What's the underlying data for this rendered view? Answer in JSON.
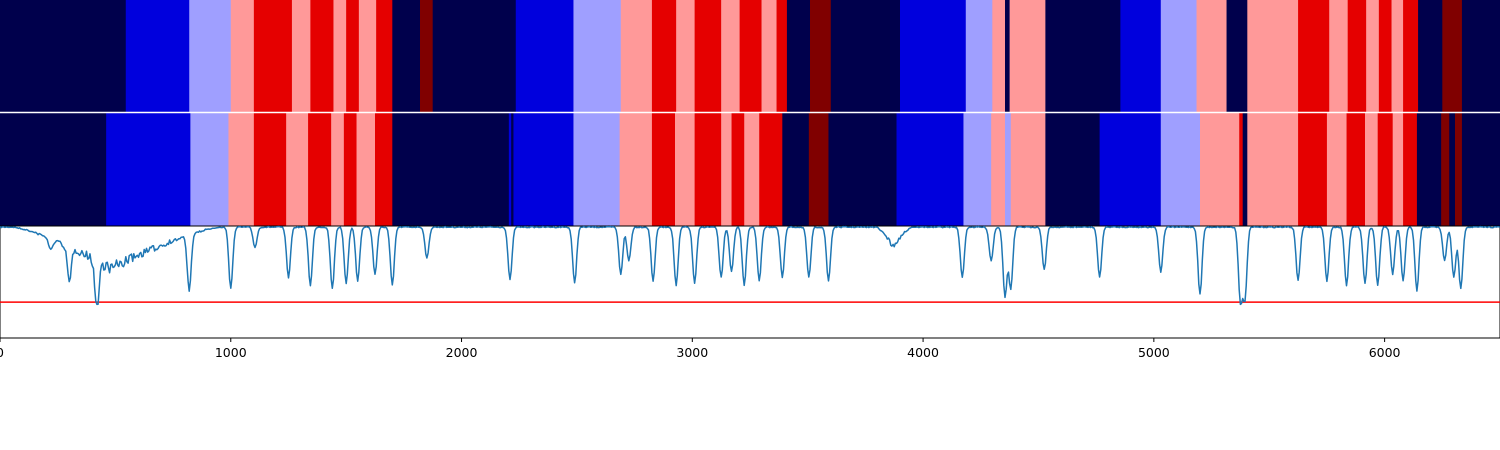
{
  "chart_data": {
    "type": "segmentation-comparison",
    "x_range": [
      0,
      6500
    ],
    "x_ticks": [
      0,
      1000,
      2000,
      3000,
      4000,
      5000,
      6000
    ],
    "palette": {
      "0": "#00004c",
      "1": "#0000dd",
      "2": "#9f9fff",
      "3": "#ff9999",
      "4": "#e50000",
      "5": "#800000"
    },
    "segmentation_top": [
      [
        0,
        545,
        0
      ],
      [
        545,
        820,
        1
      ],
      [
        820,
        1000,
        2
      ],
      [
        1000,
        1100,
        3
      ],
      [
        1100,
        1265,
        4
      ],
      [
        1265,
        1345,
        3
      ],
      [
        1345,
        1445,
        4
      ],
      [
        1445,
        1500,
        3
      ],
      [
        1500,
        1555,
        4
      ],
      [
        1555,
        1630,
        3
      ],
      [
        1630,
        1700,
        4
      ],
      [
        1700,
        1820,
        0
      ],
      [
        1820,
        1875,
        5
      ],
      [
        1875,
        2235,
        0
      ],
      [
        2235,
        2485,
        1
      ],
      [
        2485,
        2690,
        2
      ],
      [
        2690,
        2825,
        3
      ],
      [
        2825,
        2930,
        4
      ],
      [
        2930,
        3010,
        3
      ],
      [
        3010,
        3125,
        4
      ],
      [
        3125,
        3205,
        3
      ],
      [
        3205,
        3300,
        4
      ],
      [
        3300,
        3365,
        3
      ],
      [
        3365,
        3410,
        4
      ],
      [
        3410,
        3510,
        0
      ],
      [
        3510,
        3600,
        5
      ],
      [
        3600,
        3900,
        0
      ],
      [
        3900,
        4185,
        1
      ],
      [
        4185,
        4300,
        2
      ],
      [
        4300,
        4355,
        3
      ],
      [
        4355,
        4375,
        0
      ],
      [
        4375,
        4530,
        3
      ],
      [
        4530,
        4855,
        0
      ],
      [
        4855,
        5030,
        1
      ],
      [
        5030,
        5185,
        2
      ],
      [
        5185,
        5315,
        3
      ],
      [
        5315,
        5405,
        0
      ],
      [
        5405,
        5625,
        3
      ],
      [
        5625,
        5760,
        4
      ],
      [
        5760,
        5840,
        3
      ],
      [
        5840,
        5920,
        4
      ],
      [
        5920,
        5975,
        3
      ],
      [
        5975,
        6030,
        4
      ],
      [
        6030,
        6080,
        3
      ],
      [
        6080,
        6145,
        4
      ],
      [
        6145,
        6250,
        0
      ],
      [
        6250,
        6335,
        5
      ],
      [
        6335,
        6500,
        0
      ]
    ],
    "segmentation_bottom": [
      [
        0,
        460,
        0
      ],
      [
        460,
        825,
        1
      ],
      [
        825,
        990,
        2
      ],
      [
        990,
        1100,
        3
      ],
      [
        1100,
        1240,
        4
      ],
      [
        1240,
        1335,
        3
      ],
      [
        1335,
        1435,
        4
      ],
      [
        1435,
        1490,
        3
      ],
      [
        1490,
        1545,
        4
      ],
      [
        1545,
        1625,
        3
      ],
      [
        1625,
        1700,
        4
      ],
      [
        1700,
        2205,
        0
      ],
      [
        2205,
        2215,
        1
      ],
      [
        2215,
        2225,
        0
      ],
      [
        2225,
        2485,
        1
      ],
      [
        2485,
        2685,
        2
      ],
      [
        2685,
        2825,
        3
      ],
      [
        2825,
        2925,
        4
      ],
      [
        2925,
        3010,
        3
      ],
      [
        3010,
        3125,
        4
      ],
      [
        3125,
        3170,
        3
      ],
      [
        3170,
        3225,
        4
      ],
      [
        3225,
        3290,
        3
      ],
      [
        3290,
        3390,
        4
      ],
      [
        3390,
        3505,
        0
      ],
      [
        3505,
        3590,
        5
      ],
      [
        3590,
        3885,
        0
      ],
      [
        3885,
        4175,
        1
      ],
      [
        4175,
        4295,
        2
      ],
      [
        4295,
        4355,
        3
      ],
      [
        4355,
        4380,
        2
      ],
      [
        4380,
        4530,
        3
      ],
      [
        4530,
        4765,
        0
      ],
      [
        4765,
        5030,
        1
      ],
      [
        5030,
        5200,
        2
      ],
      [
        5200,
        5370,
        3
      ],
      [
        5370,
        5385,
        4
      ],
      [
        5385,
        5405,
        0
      ],
      [
        5405,
        5625,
        3
      ],
      [
        5625,
        5750,
        4
      ],
      [
        5750,
        5835,
        3
      ],
      [
        5835,
        5915,
        4
      ],
      [
        5915,
        5970,
        3
      ],
      [
        5970,
        6035,
        4
      ],
      [
        6035,
        6080,
        3
      ],
      [
        6080,
        6140,
        4
      ],
      [
        6140,
        6245,
        0
      ],
      [
        6245,
        6280,
        5
      ],
      [
        6280,
        6305,
        0
      ],
      [
        6305,
        6335,
        5
      ],
      [
        6335,
        6500,
        0
      ]
    ],
    "signal": {
      "y_range": [
        0,
        1
      ],
      "color": "#1f77b4",
      "threshold": 0.68,
      "threshold_color": "#ff0000",
      "broad_dips": [
        {
          "x0": 60,
          "x1": 950,
          "peak": 480,
          "depth": 0.42
        },
        {
          "x0": 3800,
          "x1": 3950,
          "peak": 3870,
          "depth": 0.2
        }
      ],
      "spikes": [
        {
          "x": 220,
          "depth": 0.1
        },
        {
          "x": 300,
          "depth": 0.32
        },
        {
          "x": 420,
          "depth": 0.45
        },
        {
          "x": 820,
          "depth": 0.5
        },
        {
          "x": 1000,
          "depth": 0.55
        },
        {
          "x": 1105,
          "depth": 0.18
        },
        {
          "x": 1250,
          "depth": 0.45
        },
        {
          "x": 1345,
          "depth": 0.52
        },
        {
          "x": 1440,
          "depth": 0.55
        },
        {
          "x": 1500,
          "depth": 0.5
        },
        {
          "x": 1550,
          "depth": 0.48
        },
        {
          "x": 1625,
          "depth": 0.42
        },
        {
          "x": 1700,
          "depth": 0.52
        },
        {
          "x": 1850,
          "depth": 0.28
        },
        {
          "x": 2210,
          "depth": 0.47
        },
        {
          "x": 2490,
          "depth": 0.5
        },
        {
          "x": 2690,
          "depth": 0.42
        },
        {
          "x": 2725,
          "depth": 0.3
        },
        {
          "x": 2830,
          "depth": 0.48
        },
        {
          "x": 2930,
          "depth": 0.52
        },
        {
          "x": 3010,
          "depth": 0.5
        },
        {
          "x": 3125,
          "depth": 0.45
        },
        {
          "x": 3170,
          "depth": 0.4
        },
        {
          "x": 3225,
          "depth": 0.52
        },
        {
          "x": 3290,
          "depth": 0.48
        },
        {
          "x": 3390,
          "depth": 0.45
        },
        {
          "x": 3505,
          "depth": 0.45
        },
        {
          "x": 3590,
          "depth": 0.48
        },
        {
          "x": 4170,
          "depth": 0.45
        },
        {
          "x": 4295,
          "depth": 0.3
        },
        {
          "x": 4355,
          "depth": 0.62
        },
        {
          "x": 4380,
          "depth": 0.55
        },
        {
          "x": 4525,
          "depth": 0.38
        },
        {
          "x": 4765,
          "depth": 0.45
        },
        {
          "x": 5030,
          "depth": 0.4
        },
        {
          "x": 5200,
          "depth": 0.6
        },
        {
          "x": 5375,
          "depth": 0.66
        },
        {
          "x": 5395,
          "depth": 0.62
        },
        {
          "x": 5625,
          "depth": 0.48
        },
        {
          "x": 5750,
          "depth": 0.48
        },
        {
          "x": 5835,
          "depth": 0.52
        },
        {
          "x": 5915,
          "depth": 0.5
        },
        {
          "x": 5970,
          "depth": 0.52
        },
        {
          "x": 6035,
          "depth": 0.42
        },
        {
          "x": 6080,
          "depth": 0.48
        },
        {
          "x": 6140,
          "depth": 0.57
        },
        {
          "x": 6260,
          "depth": 0.3
        },
        {
          "x": 6300,
          "depth": 0.45
        },
        {
          "x": 6330,
          "depth": 0.55
        }
      ]
    }
  }
}
